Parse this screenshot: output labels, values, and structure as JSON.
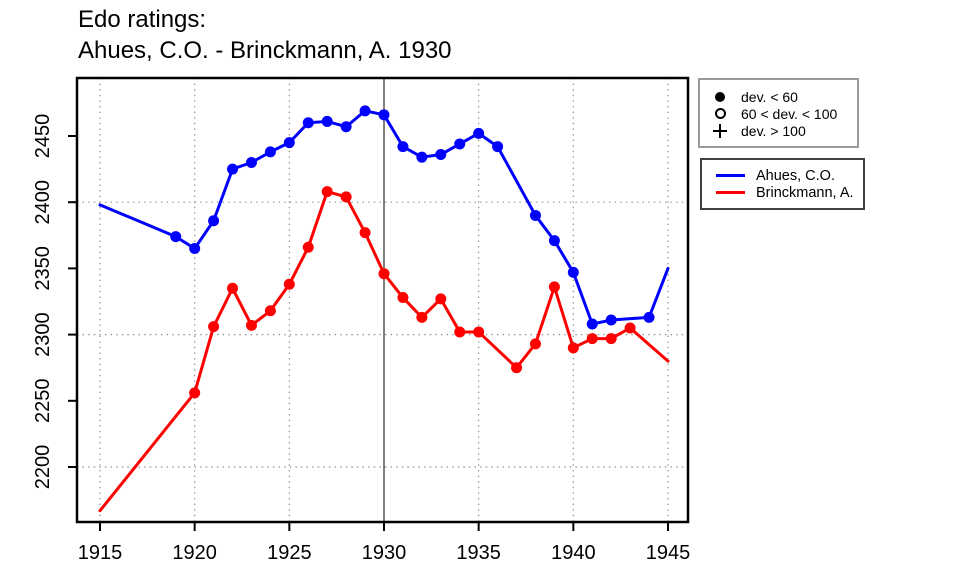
{
  "chart_data": {
    "type": "line",
    "title_line1": "Edo ratings:",
    "title_line2": "Ahues, C.O. - Brinckmann, A. 1930",
    "x_axis": {
      "min": 1915,
      "max": 1945,
      "ticks": [
        1915,
        1920,
        1925,
        1930,
        1935,
        1940,
        1945
      ],
      "gridlines": [
        1915,
        1920,
        1925,
        1930,
        1935,
        1940,
        1945
      ],
      "gridline_color": "#8c8c8c"
    },
    "y_axis": {
      "min": 2160,
      "max": 2480,
      "ticks": [
        2200,
        2250,
        2300,
        2350,
        2400,
        2450
      ],
      "gridlines": [
        2200,
        2300,
        2400
      ],
      "gridline_color": "#8c8c8c"
    },
    "event_line": {
      "x": 1930,
      "color": "#7f7f7f"
    },
    "grid": "dotted",
    "legend_position": "right",
    "series": [
      {
        "name": "Ahues, C.O.",
        "slug": "ahues",
        "color": "#0000ff",
        "marker_style": "filled-circle (dev. < 60)",
        "points": [
          {
            "x": 1915,
            "y": 2398,
            "marker": false
          },
          {
            "x": 1919,
            "y": 2374,
            "marker": true
          },
          {
            "x": 1920,
            "y": 2365,
            "marker": true
          },
          {
            "x": 1921,
            "y": 2386,
            "marker": true
          },
          {
            "x": 1922,
            "y": 2425,
            "marker": true
          },
          {
            "x": 1923,
            "y": 2430,
            "marker": true
          },
          {
            "x": 1924,
            "y": 2438,
            "marker": true
          },
          {
            "x": 1925,
            "y": 2445,
            "marker": true
          },
          {
            "x": 1926,
            "y": 2460,
            "marker": true
          },
          {
            "x": 1927,
            "y": 2461,
            "marker": true
          },
          {
            "x": 1928,
            "y": 2457,
            "marker": true
          },
          {
            "x": 1929,
            "y": 2469,
            "marker": true
          },
          {
            "x": 1930,
            "y": 2466,
            "marker": true
          },
          {
            "x": 1931,
            "y": 2442,
            "marker": true
          },
          {
            "x": 1932,
            "y": 2434,
            "marker": true
          },
          {
            "x": 1933,
            "y": 2436,
            "marker": true
          },
          {
            "x": 1934,
            "y": 2444,
            "marker": true
          },
          {
            "x": 1935,
            "y": 2452,
            "marker": true
          },
          {
            "x": 1936,
            "y": 2442,
            "marker": true
          },
          {
            "x": 1938,
            "y": 2390,
            "marker": true
          },
          {
            "x": 1939,
            "y": 2371,
            "marker": true
          },
          {
            "x": 1940,
            "y": 2347,
            "marker": true
          },
          {
            "x": 1941,
            "y": 2308,
            "marker": true
          },
          {
            "x": 1942,
            "y": 2311,
            "marker": true
          },
          {
            "x": 1944,
            "y": 2313,
            "marker": true
          },
          {
            "x": 1945,
            "y": 2350,
            "marker": false
          }
        ]
      },
      {
        "name": "Brinckmann, A.",
        "slug": "brinckmann",
        "color": "#ff0000",
        "marker_style": "filled-circle (dev. < 60)",
        "points": [
          {
            "x": 1915,
            "y": 2167,
            "marker": false
          },
          {
            "x": 1920,
            "y": 2256,
            "marker": true
          },
          {
            "x": 1921,
            "y": 2306,
            "marker": true
          },
          {
            "x": 1922,
            "y": 2335,
            "marker": true
          },
          {
            "x": 1923,
            "y": 2307,
            "marker": true
          },
          {
            "x": 1924,
            "y": 2318,
            "marker": true
          },
          {
            "x": 1925,
            "y": 2338,
            "marker": true
          },
          {
            "x": 1926,
            "y": 2366,
            "marker": true
          },
          {
            "x": 1927,
            "y": 2408,
            "marker": true
          },
          {
            "x": 1928,
            "y": 2404,
            "marker": true
          },
          {
            "x": 1929,
            "y": 2377,
            "marker": true
          },
          {
            "x": 1930,
            "y": 2346,
            "marker": true
          },
          {
            "x": 1931,
            "y": 2328,
            "marker": true
          },
          {
            "x": 1932,
            "y": 2313,
            "marker": true
          },
          {
            "x": 1933,
            "y": 2327,
            "marker": true
          },
          {
            "x": 1934,
            "y": 2302,
            "marker": true
          },
          {
            "x": 1935,
            "y": 2302,
            "marker": true
          },
          {
            "x": 1937,
            "y": 2275,
            "marker": true
          },
          {
            "x": 1938,
            "y": 2293,
            "marker": true
          },
          {
            "x": 1939,
            "y": 2336,
            "marker": true
          },
          {
            "x": 1940,
            "y": 2290,
            "marker": true
          },
          {
            "x": 1941,
            "y": 2297,
            "marker": true
          },
          {
            "x": 1942,
            "y": 2297,
            "marker": true
          },
          {
            "x": 1943,
            "y": 2305,
            "marker": true
          },
          {
            "x": 1945,
            "y": 2280,
            "marker": false
          }
        ]
      }
    ]
  },
  "legend_symbols": {
    "items": [
      {
        "icon": "filled-circle",
        "label": "dev. < 60"
      },
      {
        "icon": "open-circle",
        "label": "60 < dev. < 100"
      },
      {
        "icon": "plus",
        "label": "dev. > 100"
      }
    ]
  },
  "legend_series": {
    "items": [
      {
        "label": "Ahues, C.O.",
        "color": "#0000ff"
      },
      {
        "label": "Brinckmann, A.",
        "color": "#ff0000"
      }
    ]
  }
}
